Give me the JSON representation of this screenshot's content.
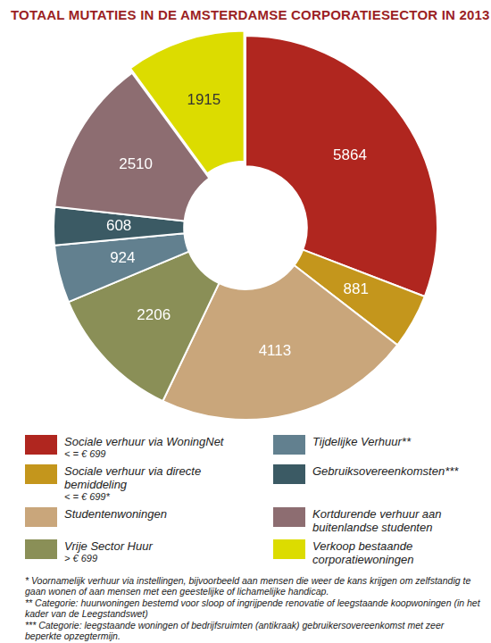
{
  "chart_data": {
    "type": "doughnut",
    "title": "TOTAAL MUTATIES IN DE AMSTERDAMSE CORPORATIESECTOR IN 2013",
    "categories": [
      "Sociale verhuur via WoningNet",
      "Sociale verhuur via directe bemiddeling",
      "Studentenwoningen",
      "Vrije Sector Huur",
      "Tijdelijke Verhuur**",
      "Gebruiksovereenkomsten***",
      "Kortdurende verhuur aan buitenlandse studenten",
      "Verkoop bestaande corporatiewoningen"
    ],
    "category_notes": [
      "< = € 699",
      "< = € 699*",
      null,
      "> € 699",
      null,
      null,
      null,
      null
    ],
    "values": [
      5864,
      881,
      4113,
      2206,
      924,
      608,
      2510,
      1915
    ],
    "colors": [
      "#b0261f",
      "#c4961c",
      "#c9a67b",
      "#8a8f57",
      "#62808f",
      "#3b5a64",
      "#8d6d71",
      "#dcdc00"
    ],
    "data_labels": true,
    "legend": "bottom",
    "notes": [
      "* Voornamelijk verhuur via instellingen, bijvoorbeeld aan mensen die weer de kans krijgen om zelfstandig te gaan wonen of aan mensen met een geestelijke of lichamelijke handicap.",
      "** Categorie: huurwoningen bestemd voor sloop of ingrijpende renovatie of leegstaande koopwoningen (in het kader van de Leegstandswet)",
      "*** Categorie: leegstaande woningen of bedrijfsruimten (antikraak) gebruikersovereenkomst met zeer beperkte opzegtermijn."
    ]
  }
}
